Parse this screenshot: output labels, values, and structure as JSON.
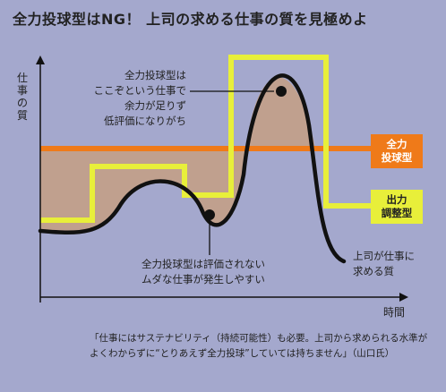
{
  "title": "全力投球型はNG！ 上司の求める仕事の質を見極めよ",
  "axes": {
    "y_label": "仕事の質",
    "x_label": "時間"
  },
  "annotations": {
    "top": [
      "全力投球型は",
      "ここぞという仕事で",
      "余力が足りず",
      "低評価になりがち"
    ],
    "bottom": [
      "全力投球型は評価されない",
      "ムダな仕事が発生しやすい"
    ],
    "right": [
      "上司が仕事に",
      "求める質"
    ]
  },
  "legend": {
    "full_effort": [
      "全力",
      "投球型"
    ],
    "adjusted": [
      "出力",
      "調整型"
    ]
  },
  "quote": "「仕事にはサステナビリティ（持続可能性）も必要。上司から求められる水準がよくわからずに“とりあえず全力投球”していては持ちません」（山口氏）",
  "colors": {
    "background": "#a4a8cd",
    "orange": "#ef7a19",
    "yellow": "#e8ef3a",
    "fill": "#c0a08e",
    "curve": "#111111"
  }
}
